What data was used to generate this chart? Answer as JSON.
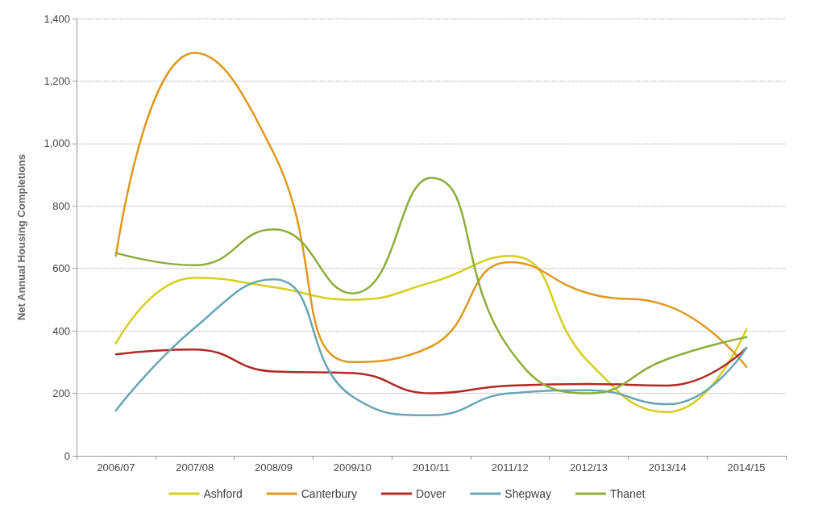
{
  "chart_data": {
    "type": "line",
    "ylabel": "Net Annual Housing Completions",
    "categories": [
      "2006/07",
      "2007/08",
      "2008/09",
      "2009/10",
      "2010/11",
      "2011/12",
      "2012/13",
      "2013/14",
      "2014/15"
    ],
    "series": [
      {
        "name": "Ashford",
        "color": "#d6cf1c",
        "values": [
          360,
          570,
          540,
          500,
          555,
          640,
          300,
          140,
          405
        ]
      },
      {
        "name": "Canterbury",
        "color": "#e0991c",
        "values": [
          640,
          1290,
          970,
          300,
          350,
          620,
          520,
          480,
          285
        ]
      },
      {
        "name": "Dover",
        "color": "#b02a26",
        "values": [
          325,
          340,
          270,
          265,
          200,
          225,
          230,
          225,
          345
        ]
      },
      {
        "name": "Shepway",
        "color": "#6aa6b8",
        "values": [
          145,
          410,
          565,
          190,
          130,
          200,
          210,
          165,
          345
        ]
      },
      {
        "name": "Thanet",
        "color": "#8cad3a",
        "values": [
          650,
          610,
          725,
          520,
          890,
          340,
          200,
          310,
          380
        ]
      }
    ],
    "ylim": [
      0,
      1400
    ],
    "yticks": [
      0,
      200,
      400,
      600,
      800,
      {
        "value": 1000,
        "label": "1,000"
      },
      {
        "value": 1200,
        "label": "1,200"
      },
      {
        "value": 1400,
        "label": "1,400"
      }
    ],
    "grid": "y",
    "legend": "bottom",
    "marker": "none",
    "line_style": "solid"
  }
}
